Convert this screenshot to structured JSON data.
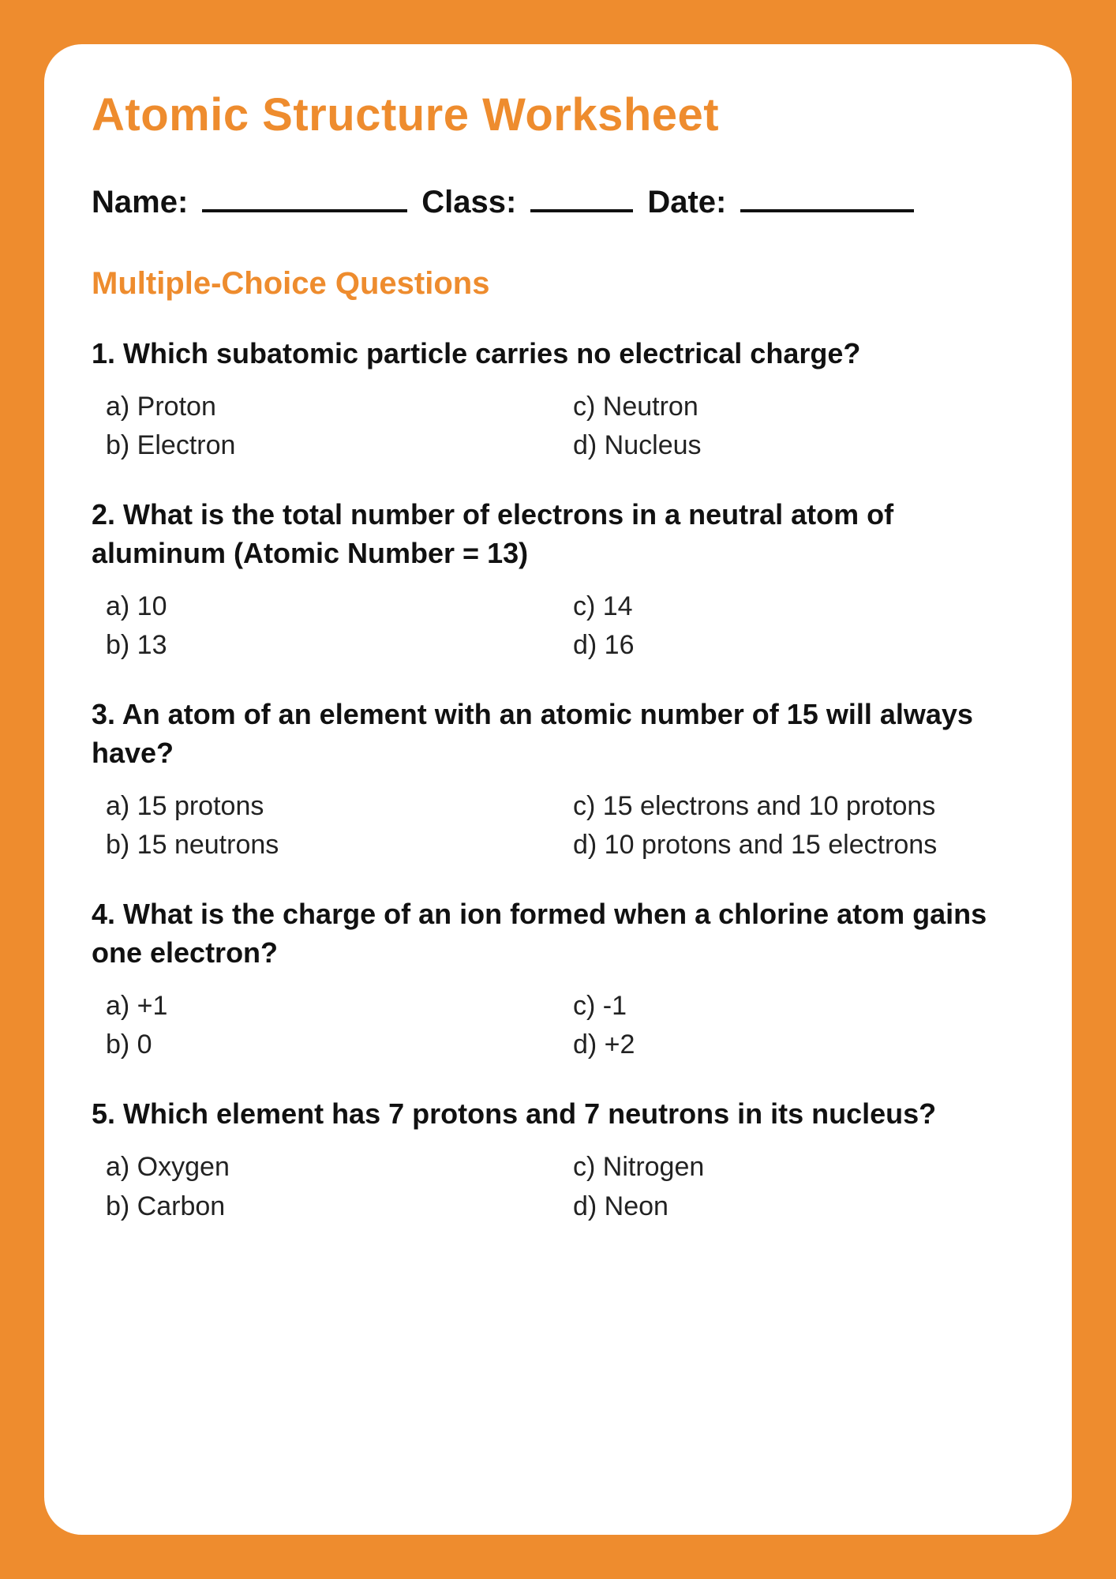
{
  "colors": {
    "accent": "#ee8c2e",
    "text": "#111111",
    "card_bg": "#ffffff"
  },
  "title": "Atomic Structure Worksheet",
  "info": {
    "name_label": "Name:",
    "class_label": "Class:",
    "date_label": "Date:"
  },
  "section_heading": "Multiple-Choice Questions",
  "questions": [
    {
      "prompt": "1. Which subatomic particle carries no electrical charge?",
      "a": "a) Proton",
      "b": "b) Electron",
      "c": "c) Neutron",
      "d": "d) Nucleus"
    },
    {
      "prompt": "2. What is the total number of electrons in a neutral atom of aluminum (Atomic Number = 13)",
      "a": "a) 10",
      "b": "b) 13",
      "c": "c) 14",
      "d": "d) 16"
    },
    {
      "prompt": "3. An atom of an element with an atomic number of 15 will always have?",
      "a": "a) 15 protons",
      "b": "b) 15 neutrons",
      "c": "c) 15 electrons and 10 protons",
      "d": "d) 10 protons and 15 electrons"
    },
    {
      "prompt": "4. What is the charge of an ion formed when a chlorine atom gains one electron?",
      "a": "a) +1",
      "b": "b) 0",
      "c": "c) -1",
      "d": "d) +2"
    },
    {
      "prompt": "5. Which element has 7 protons and 7 neutrons in its nucleus?",
      "a": "a) Oxygen",
      "b": "b) Carbon",
      "c": "c) Nitrogen",
      "d": "d) Neon"
    }
  ]
}
